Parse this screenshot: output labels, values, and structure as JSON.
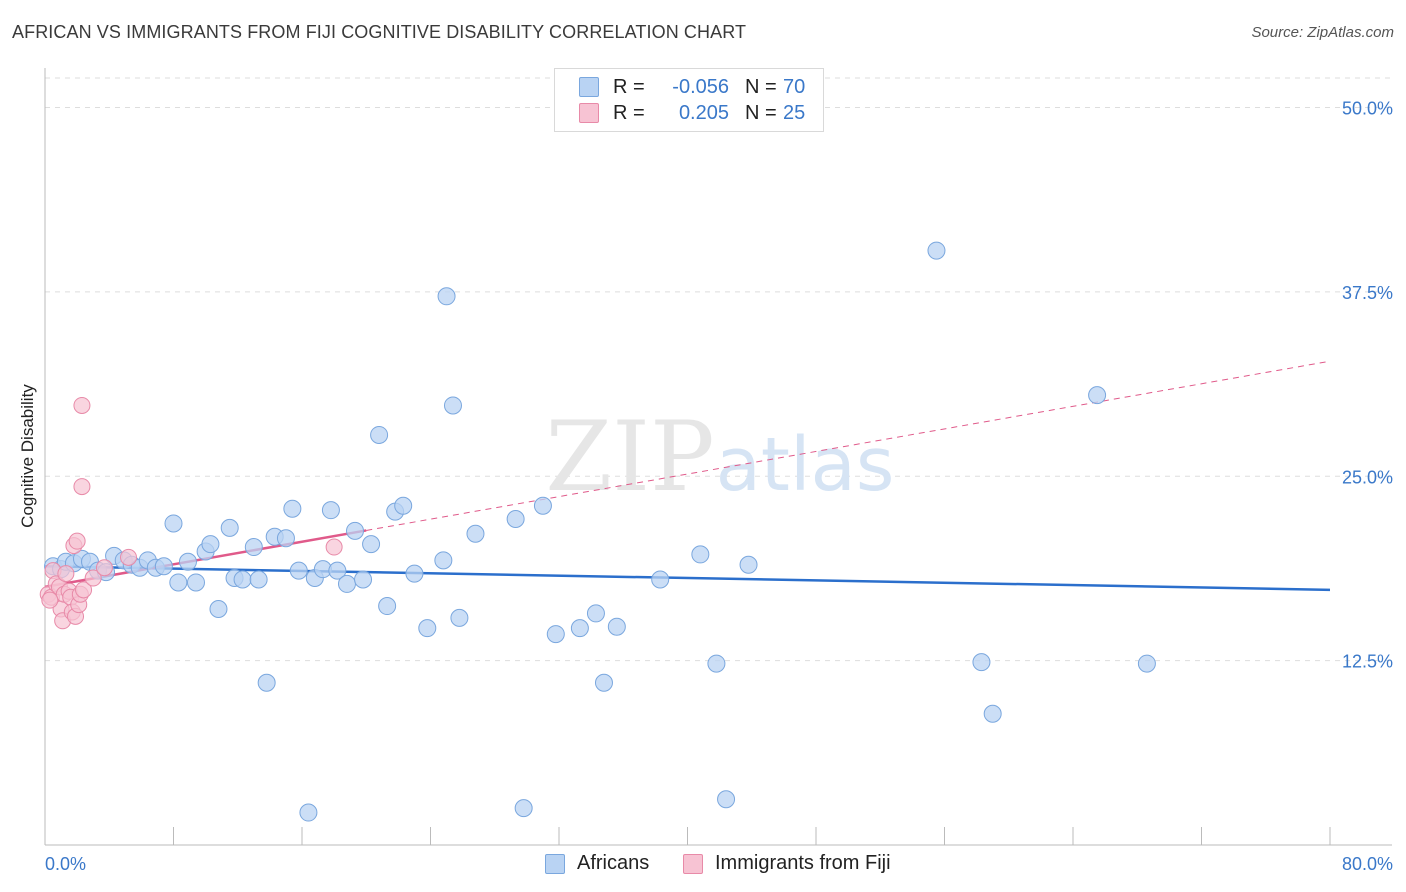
{
  "title": "AFRICAN VS IMMIGRANTS FROM FIJI COGNITIVE DISABILITY CORRELATION CHART",
  "source": "Source: ZipAtlas.com",
  "watermark": {
    "zip": "ZIP",
    "atlas": "atlas"
  },
  "legend": {
    "africans": {
      "r_label": "R =",
      "r_value": "-0.056",
      "n_label": "N =",
      "n_value": "70"
    },
    "fiji": {
      "r_label": "R =",
      "r_value": "0.205",
      "n_label": "N =",
      "n_value": "25"
    }
  },
  "bottom_legend": {
    "africans": "Africans",
    "fiji": "Immigrants from Fiji"
  },
  "colors": {
    "africans_fill": "#b9d3f3",
    "africans_stroke": "#7aa7de",
    "africans_line": "#2b6fcc",
    "fiji_fill": "#f7c3d3",
    "fiji_stroke": "#e88aa8",
    "fiji_line": "#e05a8a",
    "tick_label": "#3a78c9",
    "grid": "#dddddd"
  },
  "chart_data": {
    "type": "scatter",
    "title": "AFRICAN VS IMMIGRANTS FROM FIJI COGNITIVE DISABILITY CORRELATION CHART",
    "xlabel": "",
    "ylabel": "Cognitive Disability",
    "xlim": [
      0,
      80
    ],
    "ylim": [
      0,
      52
    ],
    "x_tick_labels": [
      "0.0%",
      "80.0%"
    ],
    "y_ticks": [
      12.5,
      25.0,
      37.5,
      50.0
    ],
    "y_tick_labels": [
      "12.5%",
      "25.0%",
      "37.5%",
      "50.0%"
    ],
    "grid": true,
    "legend_position": "top-center",
    "series": [
      {
        "name": "Africans",
        "points": [
          [
            0.5,
            18.9
          ],
          [
            1.0,
            18.7
          ],
          [
            1.3,
            19.2
          ],
          [
            1.8,
            19.1
          ],
          [
            2.3,
            19.4
          ],
          [
            2.8,
            19.2
          ],
          [
            3.3,
            18.6
          ],
          [
            3.8,
            18.5
          ],
          [
            4.3,
            19.6
          ],
          [
            4.9,
            19.3
          ],
          [
            5.4,
            19.0
          ],
          [
            5.9,
            18.8
          ],
          [
            6.4,
            19.3
          ],
          [
            6.9,
            18.8
          ],
          [
            7.4,
            18.9
          ],
          [
            8.0,
            21.8
          ],
          [
            8.3,
            17.8
          ],
          [
            8.9,
            19.2
          ],
          [
            9.4,
            17.8
          ],
          [
            10.0,
            19.9
          ],
          [
            10.3,
            20.4
          ],
          [
            10.8,
            16.0
          ],
          [
            11.5,
            21.5
          ],
          [
            11.8,
            18.1
          ],
          [
            12.3,
            18.0
          ],
          [
            13.0,
            20.2
          ],
          [
            13.3,
            18.0
          ],
          [
            13.8,
            11.0
          ],
          [
            14.3,
            20.9
          ],
          [
            15.0,
            20.8
          ],
          [
            15.4,
            22.8
          ],
          [
            15.8,
            18.6
          ],
          [
            16.4,
            2.2
          ],
          [
            16.8,
            18.1
          ],
          [
            17.3,
            18.7
          ],
          [
            17.8,
            22.7
          ],
          [
            18.2,
            18.6
          ],
          [
            18.8,
            17.7
          ],
          [
            19.3,
            21.3
          ],
          [
            19.8,
            18.0
          ],
          [
            20.3,
            20.4
          ],
          [
            20.8,
            27.8
          ],
          [
            21.3,
            16.2
          ],
          [
            21.8,
            22.6
          ],
          [
            22.3,
            23.0
          ],
          [
            23.0,
            18.4
          ],
          [
            23.8,
            14.7
          ],
          [
            24.8,
            19.3
          ],
          [
            25.0,
            37.2
          ],
          [
            25.4,
            29.8
          ],
          [
            25.8,
            15.4
          ],
          [
            26.8,
            21.1
          ],
          [
            29.3,
            22.1
          ],
          [
            29.8,
            2.5
          ],
          [
            31.0,
            23.0
          ],
          [
            31.8,
            14.3
          ],
          [
            33.3,
            14.7
          ],
          [
            34.3,
            15.7
          ],
          [
            34.8,
            11.0
          ],
          [
            35.6,
            14.8
          ],
          [
            38.3,
            18.0
          ],
          [
            40.8,
            19.7
          ],
          [
            41.8,
            12.3
          ],
          [
            42.4,
            3.1
          ],
          [
            43.8,
            19.0
          ],
          [
            55.5,
            40.3
          ],
          [
            58.3,
            12.4
          ],
          [
            59.0,
            8.9
          ],
          [
            65.5,
            30.5
          ],
          [
            68.6,
            12.3
          ]
        ],
        "trend": {
          "x": [
            0,
            80
          ],
          "y": [
            18.9,
            17.3
          ]
        }
      },
      {
        "name": "Immigrants from Fiji",
        "points": [
          [
            0.2,
            17.0
          ],
          [
            0.4,
            16.8
          ],
          [
            0.5,
            18.6
          ],
          [
            0.7,
            17.7
          ],
          [
            0.9,
            17.5
          ],
          [
            1.0,
            16.0
          ],
          [
            1.1,
            15.2
          ],
          [
            1.2,
            17.0
          ],
          [
            1.3,
            18.4
          ],
          [
            1.5,
            17.2
          ],
          [
            1.6,
            16.8
          ],
          [
            1.7,
            15.8
          ],
          [
            1.8,
            20.3
          ],
          [
            1.9,
            15.5
          ],
          [
            2.0,
            20.6
          ],
          [
            2.1,
            16.3
          ],
          [
            2.2,
            17.0
          ],
          [
            2.3,
            29.8
          ],
          [
            2.3,
            24.3
          ],
          [
            2.4,
            17.3
          ],
          [
            3.0,
            18.1
          ],
          [
            3.7,
            18.8
          ],
          [
            5.2,
            19.5
          ],
          [
            18.0,
            20.2
          ],
          [
            0.3,
            16.6
          ]
        ],
        "trend": {
          "x": [
            0,
            80
          ],
          "y": [
            17.5,
            32.8
          ]
        },
        "trend_solid_until_x": 20
      }
    ]
  }
}
